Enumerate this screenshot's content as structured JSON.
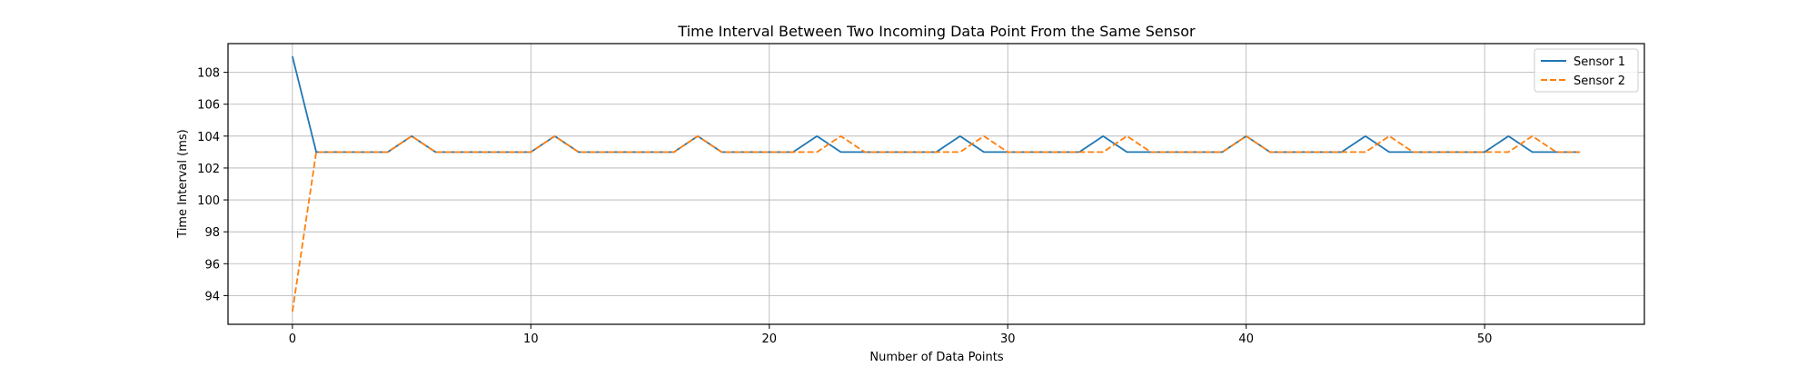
{
  "chart_data": {
    "type": "line",
    "title": "Time Interval Between Two Incoming Data Point From the Same Sensor",
    "xlabel": "Number of Data Points",
    "ylabel": "Time Interval (ms)",
    "xlim": [
      -2.7,
      56.7
    ],
    "ylim": [
      92.2,
      109.8
    ],
    "xticks": [
      0,
      10,
      20,
      30,
      40,
      50
    ],
    "yticks": [
      94,
      96,
      98,
      100,
      102,
      104,
      106,
      108
    ],
    "grid": true,
    "legend_position": "top-right",
    "series": [
      {
        "name": "Sensor 1",
        "color": "#1f77b4",
        "style": "solid",
        "x": [
          0,
          1,
          2,
          3,
          4,
          5,
          6,
          7,
          8,
          9,
          10,
          11,
          12,
          13,
          14,
          15,
          16,
          17,
          18,
          19,
          20,
          21,
          22,
          23,
          24,
          25,
          26,
          27,
          28,
          29,
          30,
          31,
          32,
          33,
          34,
          35,
          36,
          37,
          38,
          39,
          40,
          41,
          42,
          43,
          44,
          45,
          46,
          47,
          48,
          49,
          50,
          51,
          52,
          53,
          54
        ],
        "values": [
          109,
          103,
          103,
          103,
          103,
          104,
          103,
          103,
          103,
          103,
          103,
          104,
          103,
          103,
          103,
          103,
          103,
          104,
          103,
          103,
          103,
          103,
          104,
          103,
          103,
          103,
          103,
          103,
          104,
          103,
          103,
          103,
          103,
          103,
          104,
          103,
          103,
          103,
          103,
          103,
          104,
          103,
          103,
          103,
          103,
          104,
          103,
          103,
          103,
          103,
          103,
          104,
          103,
          103,
          103
        ]
      },
      {
        "name": "Sensor 2",
        "color": "#ff7f0e",
        "style": "dashed",
        "x": [
          0,
          1,
          2,
          3,
          4,
          5,
          6,
          7,
          8,
          9,
          10,
          11,
          12,
          13,
          14,
          15,
          16,
          17,
          18,
          19,
          20,
          21,
          22,
          23,
          24,
          25,
          26,
          27,
          28,
          29,
          30,
          31,
          32,
          33,
          34,
          35,
          36,
          37,
          38,
          39,
          40,
          41,
          42,
          43,
          44,
          45,
          46,
          47,
          48,
          49,
          50,
          51,
          52,
          53,
          54
        ],
        "values": [
          93,
          103,
          103,
          103,
          103,
          104,
          103,
          103,
          103,
          103,
          103,
          104,
          103,
          103,
          103,
          103,
          103,
          104,
          103,
          103,
          103,
          103,
          103,
          104,
          103,
          103,
          103,
          103,
          103,
          104,
          103,
          103,
          103,
          103,
          103,
          104,
          103,
          103,
          103,
          103,
          104,
          103,
          103,
          103,
          103,
          103,
          104,
          103,
          103,
          103,
          103,
          103,
          104,
          103,
          103
        ]
      }
    ]
  }
}
